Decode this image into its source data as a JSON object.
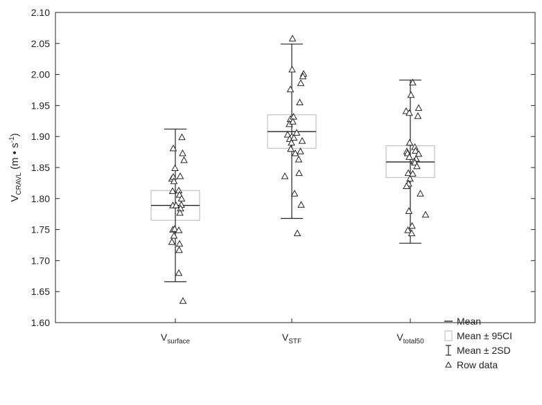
{
  "chart_data": {
    "type": "scatter",
    "ylabel": {
      "main": "V",
      "sub": "CRAVL",
      "unit_open": " (m • s",
      "unit_sup": "-1",
      "unit_close": ")"
    },
    "ylim": [
      1.6,
      2.1
    ],
    "yticks": [
      1.6,
      1.65,
      1.7,
      1.75,
      1.8,
      1.85,
      1.9,
      1.95,
      2.0,
      2.05,
      2.1
    ],
    "ytick_labels": [
      "1.60",
      "1.65",
      "1.70",
      "1.75",
      "1.80",
      "1.85",
      "1.90",
      "1.95",
      "2.00",
      "2.05",
      "2.10"
    ],
    "grid": false,
    "legend_position": "bottom-right",
    "legend": [
      {
        "key": "mean",
        "label": "Mean"
      },
      {
        "key": "ci",
        "label": "Mean ± 95CI"
      },
      {
        "key": "sd",
        "label": "Mean ± 2SD"
      },
      {
        "key": "raw",
        "label": "Row data"
      }
    ],
    "groups": [
      {
        "label_main": "V",
        "label_sub": "surface",
        "mean": 1.789,
        "ci_low": 1.765,
        "ci_high": 1.813,
        "sd_low": 1.666,
        "sd_high": 1.912,
        "points": [
          [
            -0.3,
            1.881
          ],
          [
            0.95,
            1.899
          ],
          [
            1.05,
            1.873
          ],
          [
            1.25,
            1.862
          ],
          [
            -0.05,
            1.849
          ],
          [
            -0.5,
            1.832
          ],
          [
            -0.3,
            1.835
          ],
          [
            -0.2,
            1.828
          ],
          [
            0.7,
            1.836
          ],
          [
            0.5,
            1.813
          ],
          [
            -0.4,
            1.812
          ],
          [
            0.6,
            1.806
          ],
          [
            0.9,
            1.8
          ],
          [
            -0.35,
            1.789
          ],
          [
            0.1,
            1.789
          ],
          [
            0.85,
            1.79
          ],
          [
            0.75,
            1.784
          ],
          [
            0.65,
            1.777
          ],
          [
            -0.35,
            1.75
          ],
          [
            -0.1,
            1.751
          ],
          [
            0.5,
            1.749
          ],
          [
            -0.2,
            1.74
          ],
          [
            -0.5,
            1.73
          ],
          [
            0.6,
            1.727
          ],
          [
            0.55,
            1.717
          ],
          [
            0.5,
            1.68
          ],
          [
            1.1,
            1.635
          ]
        ]
      },
      {
        "label_main": "V",
        "label_sub": "STF",
        "mean": 1.908,
        "ci_low": 1.881,
        "ci_high": 1.935,
        "sd_low": 1.768,
        "sd_high": 2.049,
        "points": [
          [
            0.1,
            2.058
          ],
          [
            0.05,
            2.008
          ],
          [
            1.7,
            2.001
          ],
          [
            1.6,
            1.997
          ],
          [
            1.3,
            1.986
          ],
          [
            -0.2,
            1.976
          ],
          [
            1.15,
            1.955
          ],
          [
            -0.2,
            1.928
          ],
          [
            -0.35,
            1.92
          ],
          [
            0.25,
            1.932
          ],
          [
            0.15,
            1.924
          ],
          [
            0.7,
            1.906
          ],
          [
            -0.6,
            1.903
          ],
          [
            0.0,
            1.9
          ],
          [
            -0.3,
            1.896
          ],
          [
            0.3,
            1.898
          ],
          [
            -0.05,
            1.89
          ],
          [
            1.5,
            1.893
          ],
          [
            1.25,
            1.876
          ],
          [
            -0.15,
            1.88
          ],
          [
            0.5,
            1.873
          ],
          [
            1.0,
            1.863
          ],
          [
            1.05,
            1.841
          ],
          [
            -1.0,
            1.836
          ],
          [
            0.4,
            1.808
          ],
          [
            1.35,
            1.79
          ],
          [
            0.8,
            1.744
          ]
        ]
      },
      {
        "label_main": "V",
        "label_sub": "total50",
        "mean": 1.859,
        "ci_low": 1.834,
        "ci_high": 1.885,
        "sd_low": 1.728,
        "sd_high": 1.991,
        "points": [
          [
            0.35,
            1.987
          ],
          [
            0.1,
            1.967
          ],
          [
            -0.6,
            1.941
          ],
          [
            -0.15,
            1.938
          ],
          [
            1.2,
            1.946
          ],
          [
            1.1,
            1.933
          ],
          [
            -0.1,
            1.89
          ],
          [
            0.65,
            1.883
          ],
          [
            -0.5,
            1.876
          ],
          [
            -0.4,
            1.873
          ],
          [
            0.75,
            1.877
          ],
          [
            1.2,
            1.872
          ],
          [
            -0.15,
            1.867
          ],
          [
            0.85,
            1.864
          ],
          [
            0.55,
            1.86
          ],
          [
            0.65,
            1.858
          ],
          [
            0.95,
            1.852
          ],
          [
            -0.3,
            1.841
          ],
          [
            0.35,
            1.84
          ],
          [
            -0.05,
            1.832
          ],
          [
            -0.25,
            1.824
          ],
          [
            -0.55,
            1.82
          ],
          [
            1.45,
            1.808
          ],
          [
            -0.2,
            1.78
          ],
          [
            2.2,
            1.774
          ],
          [
            0.25,
            1.756
          ],
          [
            -0.35,
            1.749
          ],
          [
            0.2,
            1.744
          ]
        ]
      }
    ]
  }
}
